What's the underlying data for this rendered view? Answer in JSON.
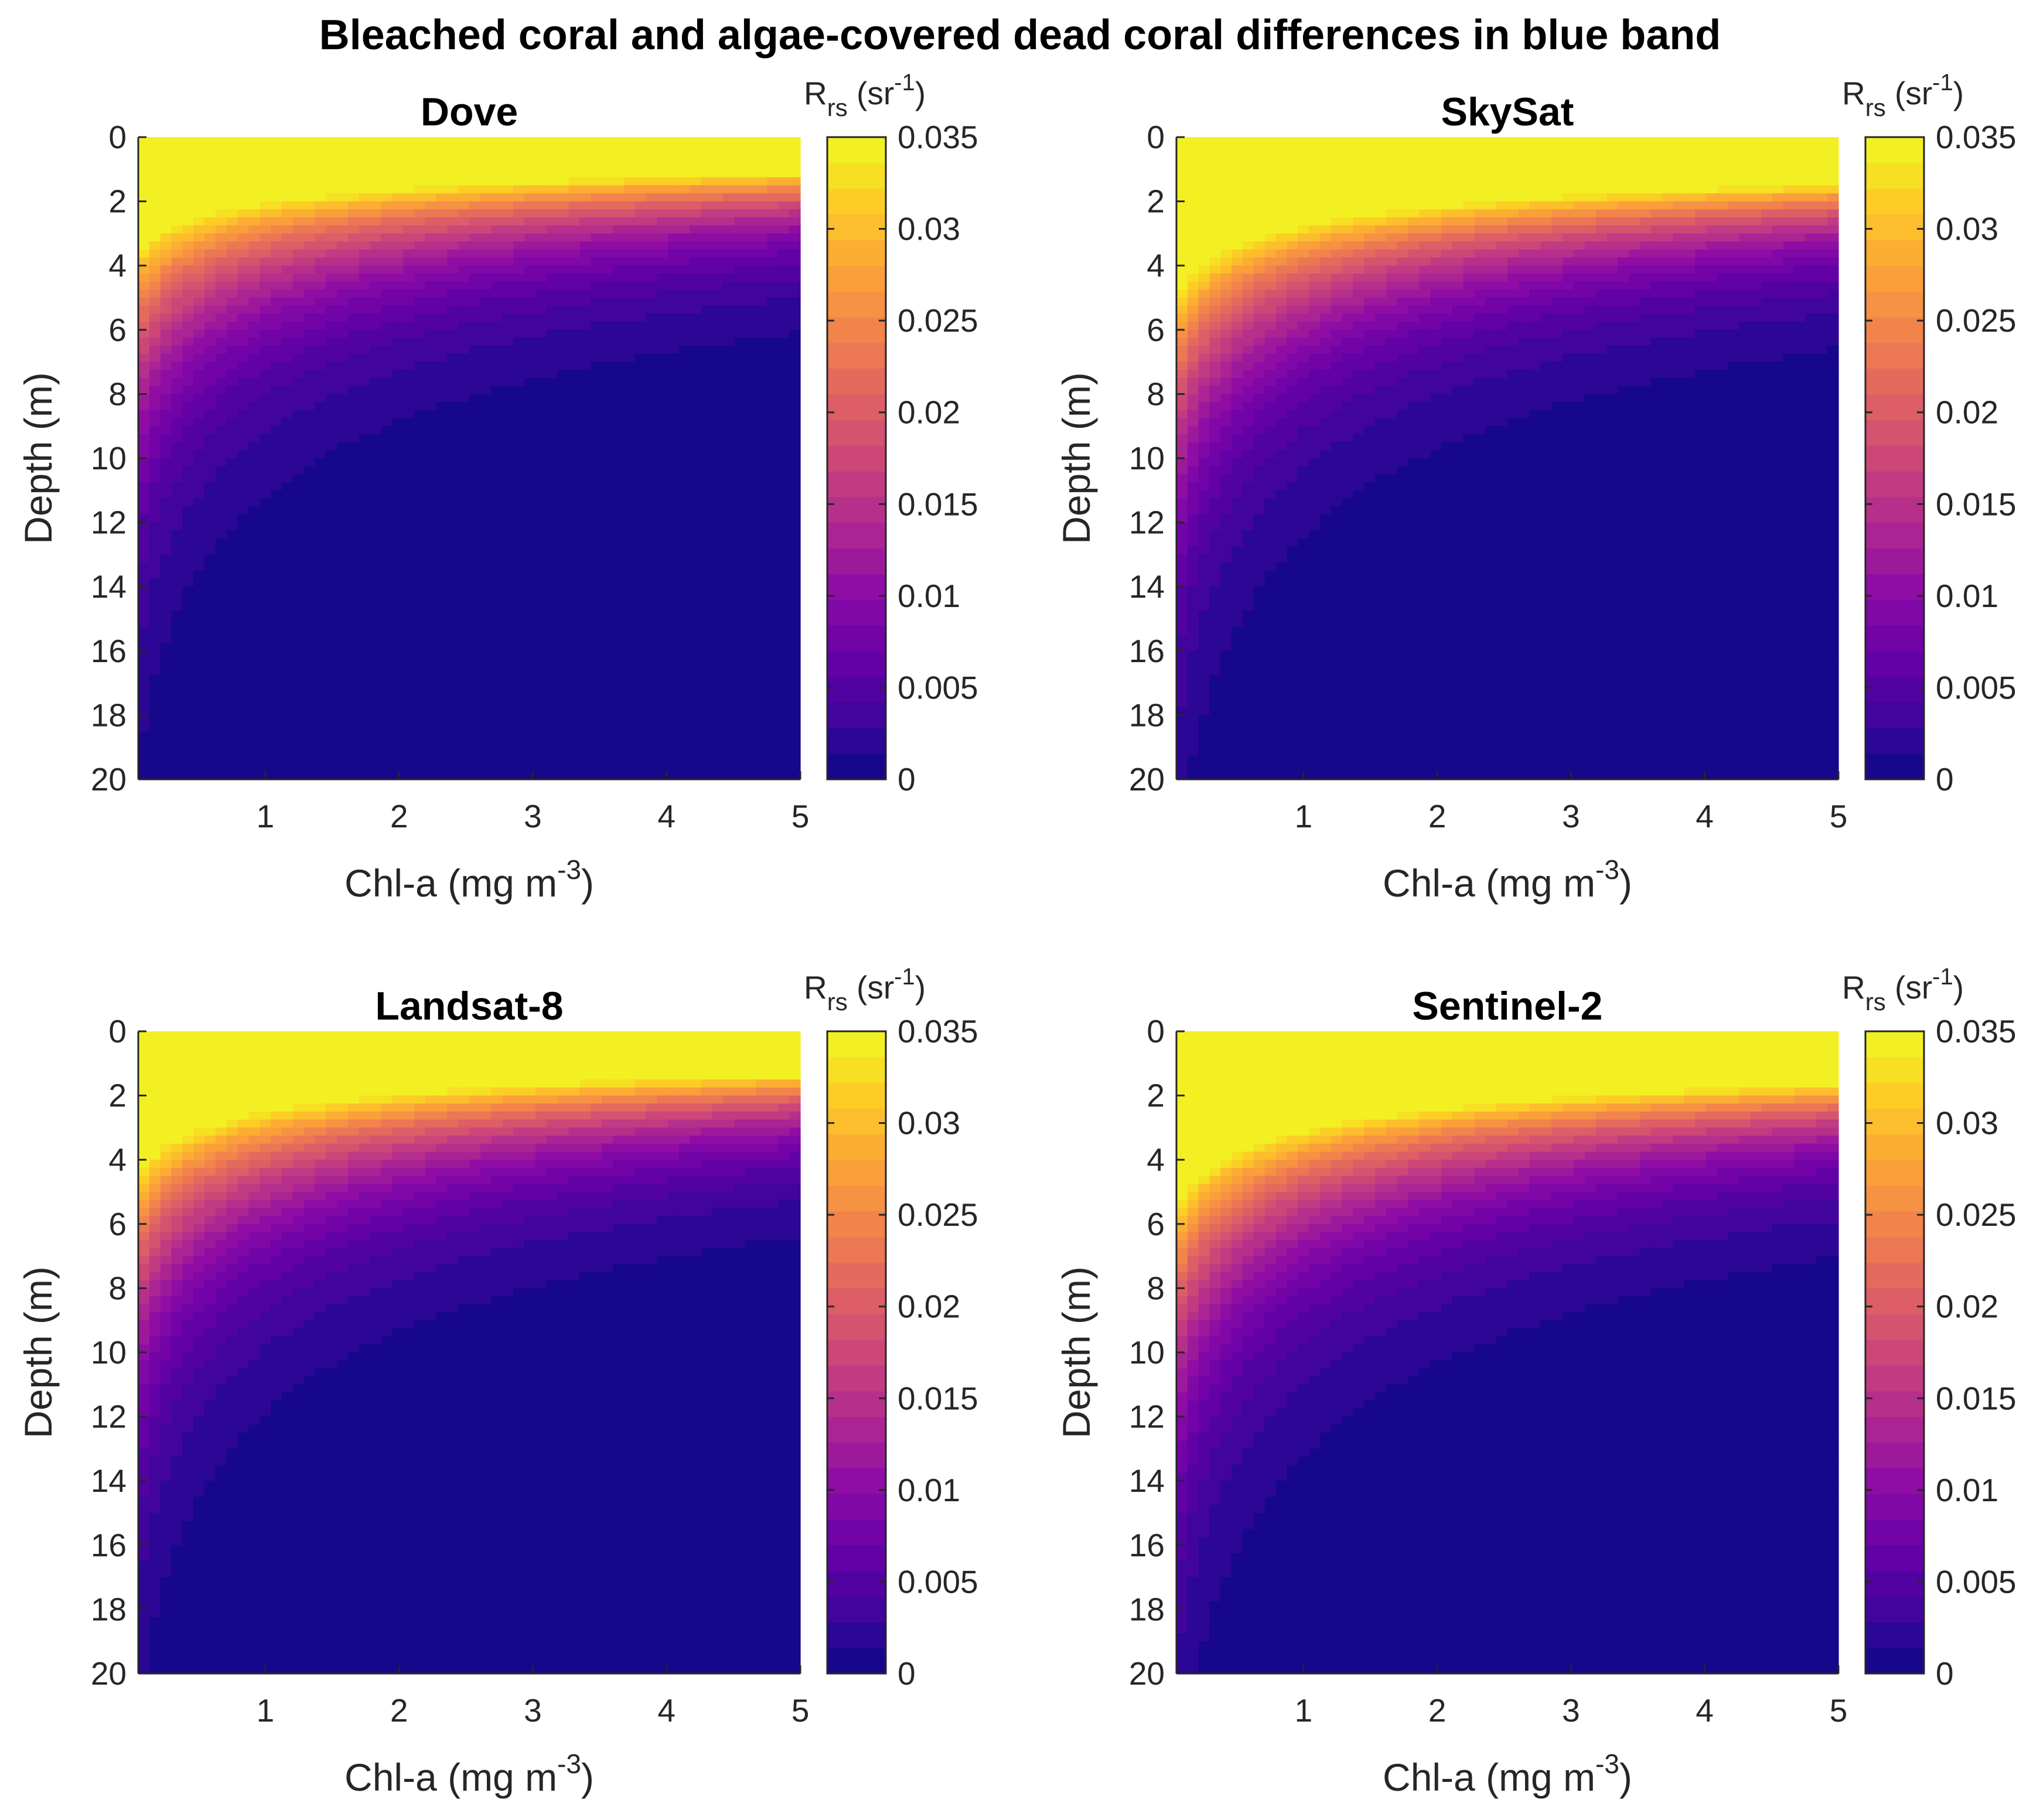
{
  "figure_title": "Bleached coral and algae-covered dead coral differences in blue band",
  "colors": {
    "text": "#262626",
    "colormap": [
      "#0d0887",
      "#41049d",
      "#6a00a8",
      "#8f0da4",
      "#b12a90",
      "#cc4778",
      "#e16462",
      "#f2844b",
      "#fca636",
      "#fcce25",
      "#f0f921"
    ]
  },
  "chart_data": [
    {
      "type": "heatmap",
      "panel": "top-left",
      "title": "Dove",
      "xlabel": "Chl-a (mg m-3)",
      "xlabel_text": "Chl-a (mg m",
      "xlabel_sup": "-3",
      "xlabel_close": ")",
      "ylabel": "Depth (m)",
      "xlim": [
        0.05,
        5
      ],
      "ylim": [
        0,
        20
      ],
      "x_ticks": [
        1,
        2,
        3,
        4,
        5
      ],
      "x_tick_labels": [
        "1",
        "2",
        "3",
        "4",
        "5"
      ],
      "y_ticks": [
        0,
        2,
        4,
        6,
        8,
        10,
        12,
        14,
        16,
        18,
        20
      ],
      "y_tick_labels": [
        "0",
        "2",
        "4",
        "6",
        "8",
        "10",
        "12",
        "14",
        "16",
        "18",
        "20"
      ],
      "y_direction": "reverse",
      "z_formula": "Rrs = a * exp(-(k0 + k1 * Chl^0.6) * Depth), clipped to [0, 0.035]",
      "z_params": {
        "a": 0.07,
        "k0": 0.17,
        "k1": 0.18
      },
      "colorbar": {
        "label": "Rrs (sr-1)",
        "label_main": "R",
        "label_sub": "rs",
        "label_open": " (sr",
        "label_sup": "-1",
        "label_close": ")",
        "range": [
          0,
          0.035
        ],
        "levels": 25,
        "ticks": [
          0,
          0.005,
          0.01,
          0.015,
          0.02,
          0.025,
          0.03,
          0.035
        ],
        "tick_labels": [
          "0",
          "0.005",
          "0.01",
          "0.015",
          "0.02",
          "0.025",
          "0.03",
          "0.035"
        ]
      }
    },
    {
      "type": "heatmap",
      "panel": "top-right",
      "title": "SkySat",
      "xlabel": "Chl-a (mg m-3)",
      "xlabel_text": "Chl-a (mg m",
      "xlabel_sup": "-3",
      "xlabel_close": ")",
      "ylabel": "Depth (m)",
      "xlim": [
        0.05,
        5
      ],
      "ylim": [
        0,
        20
      ],
      "x_ticks": [
        1,
        2,
        3,
        4,
        5
      ],
      "x_tick_labels": [
        "1",
        "2",
        "3",
        "4",
        "5"
      ],
      "y_ticks": [
        0,
        2,
        4,
        6,
        8,
        10,
        12,
        14,
        16,
        18,
        20
      ],
      "y_tick_labels": [
        "0",
        "2",
        "4",
        "6",
        "8",
        "10",
        "12",
        "14",
        "16",
        "18",
        "20"
      ],
      "y_direction": "reverse",
      "z_formula": "Rrs = a * exp(-(k0 + k1 * Chl^0.6) * Depth), clipped to [0, 0.035]",
      "z_params": {
        "a": 0.085,
        "k0": 0.15,
        "k1": 0.18
      },
      "colorbar": {
        "label": "Rrs (sr-1)",
        "label_main": "R",
        "label_sub": "rs",
        "label_open": " (sr",
        "label_sup": "-1",
        "label_close": ")",
        "range": [
          0,
          0.035
        ],
        "levels": 25,
        "ticks": [
          0,
          0.005,
          0.01,
          0.015,
          0.02,
          0.025,
          0.03,
          0.035
        ],
        "tick_labels": [
          "0",
          "0.005",
          "0.01",
          "0.015",
          "0.02",
          "0.025",
          "0.03",
          "0.035"
        ]
      }
    },
    {
      "type": "heatmap",
      "panel": "bottom-left",
      "title": "Landsat-8",
      "xlabel": "Chl-a (mg m-3)",
      "xlabel_text": "Chl-a (mg m",
      "xlabel_sup": "-3",
      "xlabel_close": ")",
      "ylabel": "Depth (m)",
      "xlim": [
        0.05,
        5
      ],
      "ylim": [
        0,
        20
      ],
      "x_ticks": [
        1,
        2,
        3,
        4,
        5
      ],
      "x_tick_labels": [
        "1",
        "2",
        "3",
        "4",
        "5"
      ],
      "y_ticks": [
        0,
        2,
        4,
        6,
        8,
        10,
        12,
        14,
        16,
        18,
        20
      ],
      "y_tick_labels": [
        "0",
        "2",
        "4",
        "6",
        "8",
        "10",
        "12",
        "14",
        "16",
        "18",
        "20"
      ],
      "y_direction": "reverse",
      "z_formula": "Rrs = a * exp(-(k0 + k1 * Chl^0.6) * Depth), clipped to [0, 0.035]",
      "z_params": {
        "a": 0.08,
        "k0": 0.16,
        "k1": 0.18
      },
      "colorbar": {
        "label": "Rrs (sr-1)",
        "label_main": "R",
        "label_sub": "rs",
        "label_open": " (sr",
        "label_sup": "-1",
        "label_close": ")",
        "range": [
          0,
          0.035
        ],
        "levels": 25,
        "ticks": [
          0,
          0.005,
          0.01,
          0.015,
          0.02,
          0.025,
          0.03,
          0.035
        ],
        "tick_labels": [
          "0",
          "0.005",
          "0.01",
          "0.015",
          "0.02",
          "0.025",
          "0.03",
          "0.035"
        ]
      }
    },
    {
      "type": "heatmap",
      "panel": "bottom-right",
      "title": "Sentinel-2",
      "xlabel": "Chl-a (mg m-3)",
      "xlabel_text": "Chl-a (mg m",
      "xlabel_sup": "-3",
      "xlabel_close": ")",
      "ylabel": "Depth (m)",
      "xlim": [
        0.05,
        5
      ],
      "ylim": [
        0,
        20
      ],
      "x_ticks": [
        1,
        2,
        3,
        4,
        5
      ],
      "x_tick_labels": [
        "1",
        "2",
        "3",
        "4",
        "5"
      ],
      "y_ticks": [
        0,
        2,
        4,
        6,
        8,
        10,
        12,
        14,
        16,
        18,
        20
      ],
      "y_tick_labels": [
        "0",
        "2",
        "4",
        "6",
        "8",
        "10",
        "12",
        "14",
        "16",
        "18",
        "20"
      ],
      "y_direction": "reverse",
      "z_formula": "Rrs = a * exp(-(k0 + k1 * Chl^0.6) * Depth), clipped to [0, 0.035]",
      "z_params": {
        "a": 0.09,
        "k0": 0.145,
        "k1": 0.17
      },
      "colorbar": {
        "label": "Rrs (sr-1)",
        "label_main": "R",
        "label_sub": "rs",
        "label_open": " (sr",
        "label_sup": "-1",
        "label_close": ")",
        "range": [
          0,
          0.035
        ],
        "levels": 25,
        "ticks": [
          0,
          0.005,
          0.01,
          0.015,
          0.02,
          0.025,
          0.03,
          0.035
        ],
        "tick_labels": [
          "0",
          "0.005",
          "0.01",
          "0.015",
          "0.02",
          "0.025",
          "0.03",
          "0.035"
        ]
      }
    }
  ]
}
